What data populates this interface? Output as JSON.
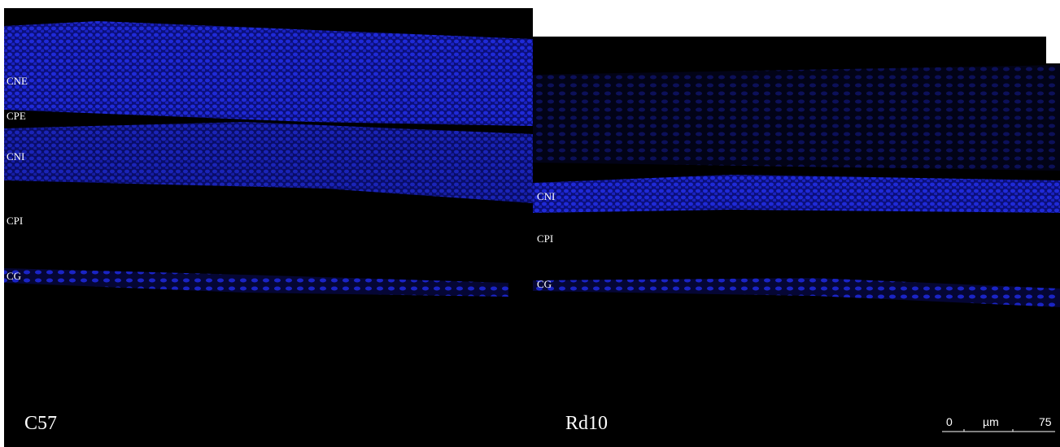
{
  "panels": [
    {
      "name": "C57",
      "layers": [
        "CNE",
        "CPE",
        "CNI",
        "CPI",
        "CG"
      ]
    },
    {
      "name": "Rd10",
      "layers": [
        "CNI",
        "CPI",
        "CG"
      ]
    }
  ],
  "scale_bar": {
    "start": "0",
    "unit": "µm",
    "end": "75"
  }
}
